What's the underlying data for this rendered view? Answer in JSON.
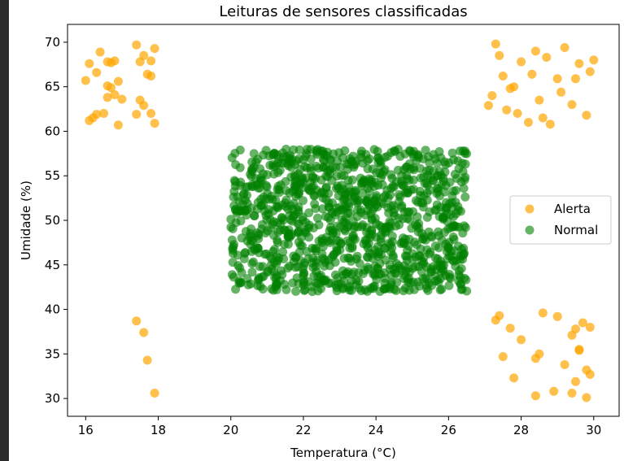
{
  "chart_data": {
    "type": "scatter",
    "title": "Leituras de sensores classificadas",
    "xlabel": "Temperatura (°C)",
    "ylabel": "Umidade (%)",
    "xlim": [
      15.5,
      30.7
    ],
    "ylim": [
      28,
      72
    ],
    "xticks": [
      16,
      18,
      20,
      22,
      24,
      26,
      28,
      30
    ],
    "yticks": [
      30,
      35,
      40,
      45,
      50,
      55,
      60,
      65,
      70
    ],
    "grid": false,
    "legend_position": "center-right",
    "series": [
      {
        "name": "Alerta",
        "color": "#ffa500",
        "points": [
          [
            16.1,
            67.6
          ],
          [
            16.2,
            61.5
          ],
          [
            16.3,
            66.6
          ],
          [
            16.4,
            68.9
          ],
          [
            16.5,
            62.0
          ],
          [
            16.6,
            65.1
          ],
          [
            16.6,
            63.8
          ],
          [
            16.7,
            67.7
          ],
          [
            16.8,
            64.1
          ],
          [
            16.9,
            60.7
          ],
          [
            17.0,
            63.6
          ],
          [
            16.3,
            61.9
          ],
          [
            16.6,
            67.8
          ],
          [
            16.8,
            67.9
          ],
          [
            16.0,
            65.7
          ],
          [
            16.1,
            61.2
          ],
          [
            16.7,
            64.9
          ],
          [
            16.9,
            65.6
          ],
          [
            17.4,
            69.7
          ],
          [
            17.5,
            67.8
          ],
          [
            17.6,
            62.9
          ],
          [
            17.6,
            68.5
          ],
          [
            17.7,
            66.4
          ],
          [
            17.8,
            67.9
          ],
          [
            17.8,
            66.2
          ],
          [
            17.9,
            69.3
          ],
          [
            17.9,
            60.9
          ],
          [
            17.5,
            63.5
          ],
          [
            17.4,
            61.9
          ],
          [
            17.8,
            62.0
          ],
          [
            17.4,
            38.7
          ],
          [
            17.6,
            37.4
          ],
          [
            17.7,
            34.3
          ],
          [
            17.9,
            30.6
          ],
          [
            27.2,
            64.0
          ],
          [
            27.3,
            69.8
          ],
          [
            27.4,
            68.5
          ],
          [
            27.5,
            66.2
          ],
          [
            27.6,
            62.4
          ],
          [
            27.8,
            65.0
          ],
          [
            28.0,
            67.8
          ],
          [
            28.2,
            61.0
          ],
          [
            28.4,
            69.0
          ],
          [
            28.5,
            63.5
          ],
          [
            28.7,
            68.3
          ],
          [
            28.8,
            60.8
          ],
          [
            29.0,
            65.9
          ],
          [
            29.2,
            69.4
          ],
          [
            29.4,
            63.0
          ],
          [
            29.6,
            67.6
          ],
          [
            29.8,
            61.8
          ],
          [
            30.0,
            68.0
          ],
          [
            27.9,
            62.0
          ],
          [
            28.3,
            66.4
          ],
          [
            29.1,
            64.4
          ],
          [
            29.5,
            65.9
          ],
          [
            27.1,
            62.9
          ],
          [
            29.9,
            66.7
          ],
          [
            28.6,
            61.5
          ],
          [
            27.7,
            64.8
          ],
          [
            27.3,
            38.8
          ],
          [
            27.5,
            34.7
          ],
          [
            27.7,
            37.9
          ],
          [
            27.8,
            32.3
          ],
          [
            28.0,
            36.6
          ],
          [
            28.4,
            34.5
          ],
          [
            28.5,
            35.0
          ],
          [
            28.6,
            39.6
          ],
          [
            28.9,
            30.8
          ],
          [
            29.0,
            39.2
          ],
          [
            29.2,
            33.8
          ],
          [
            29.4,
            30.6
          ],
          [
            29.5,
            37.8
          ],
          [
            29.6,
            35.4
          ],
          [
            29.7,
            38.5
          ],
          [
            29.8,
            33.2
          ],
          [
            29.9,
            38.0
          ],
          [
            29.9,
            32.7
          ],
          [
            28.4,
            30.3
          ],
          [
            29.5,
            31.9
          ],
          [
            29.8,
            30.1
          ],
          [
            29.4,
            37.1
          ],
          [
            27.4,
            39.3
          ],
          [
            29.6,
            35.5
          ]
        ]
      },
      {
        "name": "Normal",
        "color": "#008000",
        "generator": {
          "count": 1100,
          "x": [
            20,
            26.5
          ],
          "y": [
            42,
            58
          ]
        }
      }
    ]
  }
}
